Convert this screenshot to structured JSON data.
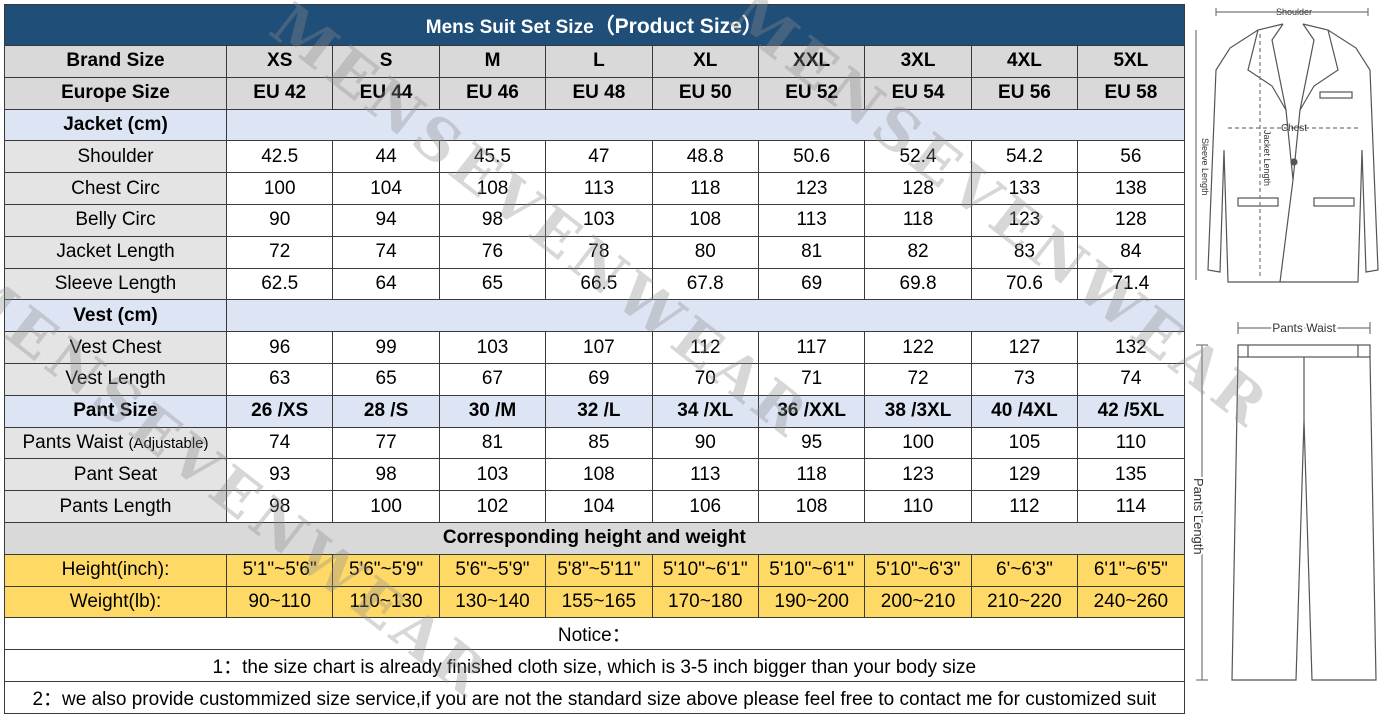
{
  "title": "Mens Suit Set Size",
  "subtitle": "（Product Size）",
  "brand_label": "Brand Size",
  "europe_label": "Europe Size",
  "brand_sizes": [
    "XS",
    "S",
    "M",
    "L",
    "XL",
    "XXL",
    "3XL",
    "4XL",
    "5XL"
  ],
  "europe_sizes": [
    "EU 42",
    "EU 44",
    "EU 46",
    "EU 48",
    "EU 50",
    "EU 52",
    "EU 54",
    "EU 56",
    "EU 58"
  ],
  "jacket": {
    "heading": "Jacket  (cm)",
    "rows": [
      {
        "label": "Shoulder",
        "values": [
          "42.5",
          "44",
          "45.5",
          "47",
          "48.8",
          "50.6",
          "52.4",
          "54.2",
          "56"
        ]
      },
      {
        "label": "Chest Circ",
        "values": [
          "100",
          "104",
          "108",
          "113",
          "118",
          "123",
          "128",
          "133",
          "138"
        ]
      },
      {
        "label": "Belly Circ",
        "values": [
          "90",
          "94",
          "98",
          "103",
          "108",
          "113",
          "118",
          "123",
          "128"
        ]
      },
      {
        "label": "Jacket Length",
        "values": [
          "72",
          "74",
          "76",
          "78",
          "80",
          "81",
          "82",
          "83",
          "84"
        ]
      },
      {
        "label": "Sleeve Length",
        "values": [
          "62.5",
          "64",
          "65",
          "66.5",
          "67.8",
          "69",
          "69.8",
          "70.6",
          "71.4"
        ]
      }
    ]
  },
  "vest": {
    "heading": "Vest (cm)",
    "rows": [
      {
        "label": "Vest Chest",
        "values": [
          "96",
          "99",
          "103",
          "107",
          "112",
          "117",
          "122",
          "127",
          "132"
        ]
      },
      {
        "label": "Vest Length",
        "values": [
          "63",
          "65",
          "67",
          "69",
          "70",
          "71",
          "72",
          "73",
          "74"
        ]
      }
    ]
  },
  "pants": {
    "heading": "Pant Size",
    "sizes": [
      "26 /XS",
      "28 /S",
      "30 /M",
      "32 /L",
      "34 /XL",
      "36 /XXL",
      "38 /3XL",
      "40 /4XL",
      "42 /5XL"
    ],
    "waist_label": "Pants Waist",
    "waist_note": "(Adjustable)",
    "waist_values": [
      "74",
      "77",
      "81",
      "85",
      "90",
      "95",
      "100",
      "105",
      "110"
    ],
    "rows": [
      {
        "label": "Pant Seat",
        "values": [
          "93",
          "98",
          "103",
          "108",
          "113",
          "118",
          "123",
          "129",
          "135"
        ]
      },
      {
        "label": "Pants Length",
        "values": [
          "98",
          "100",
          "102",
          "104",
          "106",
          "108",
          "110",
          "112",
          "114"
        ]
      }
    ]
  },
  "corresponding": "Corresponding height and weight",
  "height": {
    "label": "Height(inch):",
    "values": [
      "5'1\"~5'6\"",
      "5'6\"~5'9\"",
      "5'6\"~5'9\"",
      "5'8\"~5'11\"",
      "5'10\"~6'1\"",
      "5'10\"~6'1\"",
      "5'10\"~6'3\"",
      "6'~6'3\"",
      "6'1\"~6'5\""
    ]
  },
  "weight": {
    "label": "Weight(lb):",
    "values": [
      "90~110",
      "110~130",
      "130~140",
      "155~165",
      "170~180",
      "190~200",
      "200~210",
      "210~220",
      "240~260"
    ]
  },
  "notice": {
    "title": "Notice：",
    "lines": [
      "1：the size chart is already finished cloth size, which is 3-5 inch bigger than your body size",
      "2：we also provide custommized size service,if you are not the standard size above please feel free to contact me for customized suit"
    ]
  },
  "diagram": {
    "shoulder": "Shoulder",
    "chest": "Chest",
    "sleeve_length": "Sleeve Length",
    "jacket_length": "Jacket Length",
    "pants_waist": "Pants Waist",
    "pants_length": "Pants Length"
  },
  "watermark": "MENSEVENWEAR"
}
